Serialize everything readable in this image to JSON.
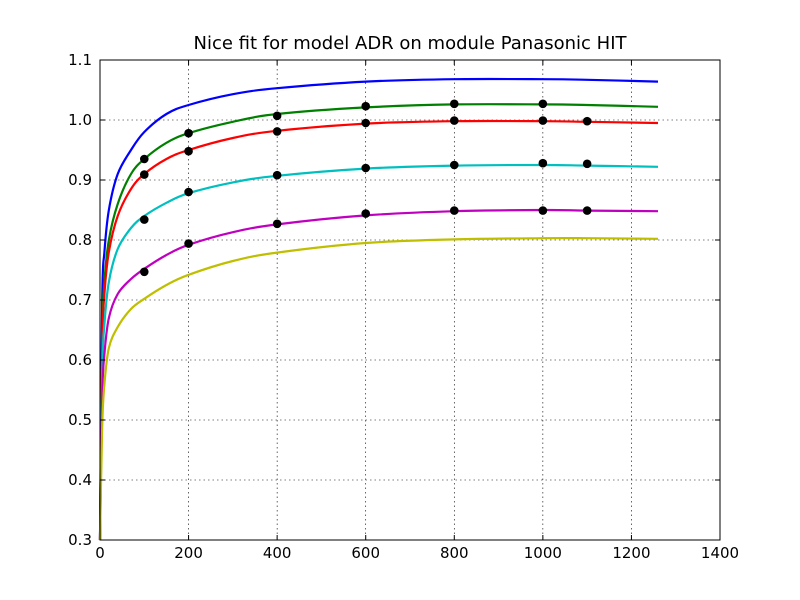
{
  "chart_data": {
    "type": "line",
    "title": "Nice fit for model ADR on module Panasonic HIT",
    "xlim": [
      0,
      1400
    ],
    "ylim": [
      0.3,
      1.1
    ],
    "xticks": [
      0,
      200,
      400,
      600,
      800,
      1000,
      1200,
      1400
    ],
    "yticks": [
      0.3,
      0.4,
      0.5,
      0.6,
      0.7,
      0.8,
      0.9,
      1.0,
      1.1
    ],
    "xtick_labels": [
      "0",
      "200",
      "400",
      "600",
      "800",
      "1000",
      "1200",
      "1400"
    ],
    "ytick_labels": [
      "0.3",
      "0.4",
      "0.5",
      "0.6",
      "0.7",
      "0.8",
      "0.9",
      "1.0",
      "1.1"
    ],
    "grid": true,
    "series": [
      {
        "color": "#0000ff",
        "curve": [
          [
            0,
            0.3
          ],
          [
            5,
            0.7
          ],
          [
            10,
            0.78
          ],
          [
            20,
            0.85
          ],
          [
            40,
            0.91
          ],
          [
            70,
            0.95
          ],
          [
            100,
            0.98
          ],
          [
            150,
            1.01
          ],
          [
            200,
            1.025
          ],
          [
            300,
            1.043
          ],
          [
            400,
            1.053
          ],
          [
            600,
            1.064
          ],
          [
            800,
            1.068
          ],
          [
            1000,
            1.068
          ],
          [
            1100,
            1.067
          ],
          [
            1260,
            1.064
          ]
        ],
        "points": []
      },
      {
        "color": "#008000",
        "curve": [
          [
            0,
            0.3
          ],
          [
            5,
            0.64
          ],
          [
            10,
            0.73
          ],
          [
            20,
            0.8
          ],
          [
            40,
            0.86
          ],
          [
            70,
            0.91
          ],
          [
            100,
            0.935
          ],
          [
            150,
            0.962
          ],
          [
            200,
            0.978
          ],
          [
            300,
            0.997
          ],
          [
            400,
            1.01
          ],
          [
            600,
            1.021
          ],
          [
            800,
            1.026
          ],
          [
            1000,
            1.026
          ],
          [
            1100,
            1.025
          ],
          [
            1260,
            1.022
          ]
        ],
        "points": [
          [
            100,
            0.935
          ],
          [
            200,
            0.978
          ],
          [
            400,
            1.007
          ],
          [
            600,
            1.023
          ],
          [
            800,
            1.027
          ],
          [
            1000,
            1.027
          ]
        ]
      },
      {
        "color": "#ff0000",
        "curve": [
          [
            0,
            0.3
          ],
          [
            5,
            0.62
          ],
          [
            10,
            0.71
          ],
          [
            20,
            0.78
          ],
          [
            40,
            0.84
          ],
          [
            70,
            0.885
          ],
          [
            100,
            0.91
          ],
          [
            150,
            0.935
          ],
          [
            200,
            0.95
          ],
          [
            300,
            0.97
          ],
          [
            400,
            0.982
          ],
          [
            600,
            0.994
          ],
          [
            800,
            0.998
          ],
          [
            1000,
            0.998
          ],
          [
            1100,
            0.997
          ],
          [
            1260,
            0.995
          ]
        ],
        "points": [
          [
            100,
            0.909
          ],
          [
            200,
            0.948
          ],
          [
            400,
            0.981
          ],
          [
            600,
            0.995
          ],
          [
            800,
            0.999
          ],
          [
            1000,
            0.999
          ],
          [
            1100,
            0.998
          ]
        ]
      },
      {
        "color": "#00bfbf",
        "curve": [
          [
            0,
            0.3
          ],
          [
            5,
            0.58
          ],
          [
            10,
            0.66
          ],
          [
            20,
            0.73
          ],
          [
            40,
            0.785
          ],
          [
            70,
            0.82
          ],
          [
            100,
            0.84
          ],
          [
            150,
            0.862
          ],
          [
            200,
            0.878
          ],
          [
            300,
            0.896
          ],
          [
            400,
            0.907
          ],
          [
            600,
            0.919
          ],
          [
            800,
            0.924
          ],
          [
            1000,
            0.925
          ],
          [
            1100,
            0.924
          ],
          [
            1260,
            0.922
          ]
        ],
        "points": [
          [
            100,
            0.834
          ],
          [
            200,
            0.88
          ],
          [
            400,
            0.908
          ],
          [
            600,
            0.92
          ],
          [
            800,
            0.925
          ],
          [
            1000,
            0.928
          ],
          [
            1100,
            0.927
          ]
        ]
      },
      {
        "color": "#bf00bf",
        "curve": [
          [
            0,
            0.3
          ],
          [
            5,
            0.54
          ],
          [
            10,
            0.61
          ],
          [
            20,
            0.67
          ],
          [
            40,
            0.71
          ],
          [
            70,
            0.735
          ],
          [
            100,
            0.752
          ],
          [
            150,
            0.775
          ],
          [
            200,
            0.792
          ],
          [
            300,
            0.813
          ],
          [
            400,
            0.826
          ],
          [
            600,
            0.841
          ],
          [
            800,
            0.848
          ],
          [
            1000,
            0.85
          ],
          [
            1100,
            0.849
          ],
          [
            1260,
            0.848
          ]
        ],
        "points": [
          [
            100,
            0.747
          ],
          [
            200,
            0.794
          ],
          [
            400,
            0.827
          ],
          [
            600,
            0.844
          ],
          [
            800,
            0.849
          ],
          [
            1000,
            0.849
          ],
          [
            1100,
            0.849
          ]
        ]
      },
      {
        "color": "#bfbf00",
        "curve": [
          [
            0,
            0.3
          ],
          [
            5,
            0.49
          ],
          [
            10,
            0.56
          ],
          [
            20,
            0.62
          ],
          [
            40,
            0.655
          ],
          [
            70,
            0.685
          ],
          [
            100,
            0.702
          ],
          [
            150,
            0.725
          ],
          [
            200,
            0.742
          ],
          [
            300,
            0.765
          ],
          [
            400,
            0.779
          ],
          [
            600,
            0.795
          ],
          [
            800,
            0.801
          ],
          [
            1000,
            0.803
          ],
          [
            1100,
            0.803
          ],
          [
            1260,
            0.802
          ]
        ],
        "points": []
      }
    ]
  }
}
